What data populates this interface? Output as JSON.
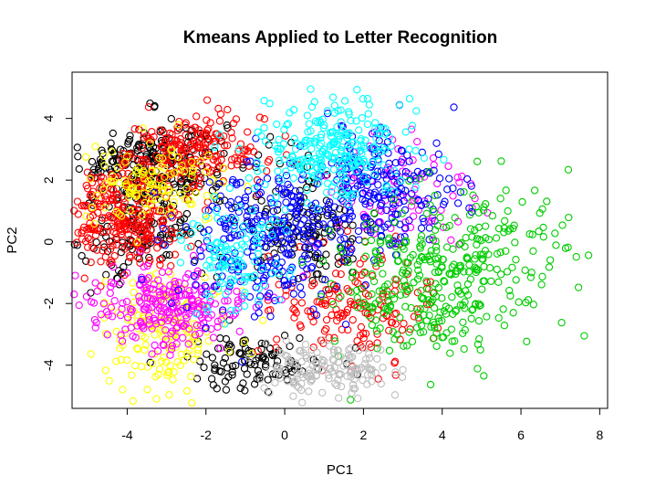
{
  "chart_data": {
    "type": "scatter",
    "title": "Kmeans Applied to Letter Recognition",
    "xlabel": "PC1",
    "ylabel": "PC2",
    "xlim": [
      -5.4,
      8.2
    ],
    "ylim": [
      -5.4,
      5.5
    ],
    "xticks": [
      -4,
      -2,
      0,
      2,
      4,
      6,
      8
    ],
    "yticks": [
      -4,
      -2,
      0,
      2,
      4
    ],
    "grid": false,
    "legend": "none",
    "marker": "open circle",
    "series": [
      {
        "color": "#000000",
        "clusters": [
          {
            "cx": -3.3,
            "cy": 2.6,
            "sx": 0.9,
            "sy": 0.7,
            "n": 220
          },
          {
            "cx": -3.6,
            "cy": 0.4,
            "sx": 0.9,
            "sy": 0.9,
            "n": 140
          },
          {
            "cx": 0.6,
            "cy": 0.6,
            "sx": 0.9,
            "sy": 1.0,
            "n": 130
          },
          {
            "cx": -0.8,
            "cy": -3.9,
            "sx": 0.9,
            "sy": 0.45,
            "n": 110
          },
          {
            "cx": -4.7,
            "cy": 2.4,
            "sx": 0.15,
            "sy": 0.15,
            "n": 12
          }
        ]
      },
      {
        "color": "#ff0000",
        "clusters": [
          {
            "cx": -4.0,
            "cy": 0.8,
            "sx": 0.7,
            "sy": 0.8,
            "n": 260
          },
          {
            "cx": -2.3,
            "cy": 2.9,
            "sx": 0.9,
            "sy": 0.6,
            "n": 200
          },
          {
            "cx": 1.8,
            "cy": -2.0,
            "sx": 1.0,
            "sy": 0.9,
            "n": 160
          },
          {
            "cx": -4.9,
            "cy": 0.42,
            "sx": 0.12,
            "sy": 0.03,
            "n": 10
          }
        ]
      },
      {
        "color": "#ffff00",
        "clusters": [
          {
            "cx": -3.3,
            "cy": 1.8,
            "sx": 0.9,
            "sy": 0.6,
            "n": 120
          },
          {
            "cx": -3.0,
            "cy": -2.9,
            "sx": 0.8,
            "sy": 0.9,
            "n": 160
          }
        ]
      },
      {
        "color": "#ff00ff",
        "clusters": [
          {
            "cx": -3.0,
            "cy": -2.1,
            "sx": 1.1,
            "sy": 0.7,
            "n": 250
          },
          {
            "cx": 2.8,
            "cy": 1.5,
            "sx": 1.0,
            "sy": 1.0,
            "n": 90
          }
        ]
      },
      {
        "color": "#0000ff",
        "clusters": [
          {
            "cx": -0.6,
            "cy": 0.0,
            "sx": 1.0,
            "sy": 1.2,
            "n": 260
          },
          {
            "cx": 2.4,
            "cy": 1.6,
            "sx": 1.0,
            "sy": 1.0,
            "n": 240
          }
        ]
      },
      {
        "color": "#00ffff",
        "clusters": [
          {
            "cx": 1.2,
            "cy": 3.0,
            "sx": 0.9,
            "sy": 0.8,
            "n": 260
          },
          {
            "cx": -1.4,
            "cy": -0.4,
            "sx": 0.6,
            "sy": 1.0,
            "n": 110
          }
        ]
      },
      {
        "color": "#00cc00",
        "clusters": [
          {
            "cx": 3.5,
            "cy": -1.3,
            "sx": 1.1,
            "sy": 1.3,
            "n": 260
          },
          {
            "cx": 5.2,
            "cy": -0.5,
            "sx": 1.0,
            "sy": 1.3,
            "n": 110
          }
        ]
      },
      {
        "color": "#bebebe",
        "clusters": [
          {
            "cx": 1.1,
            "cy": -4.1,
            "sx": 0.8,
            "sy": 0.4,
            "n": 150
          }
        ]
      }
    ]
  }
}
